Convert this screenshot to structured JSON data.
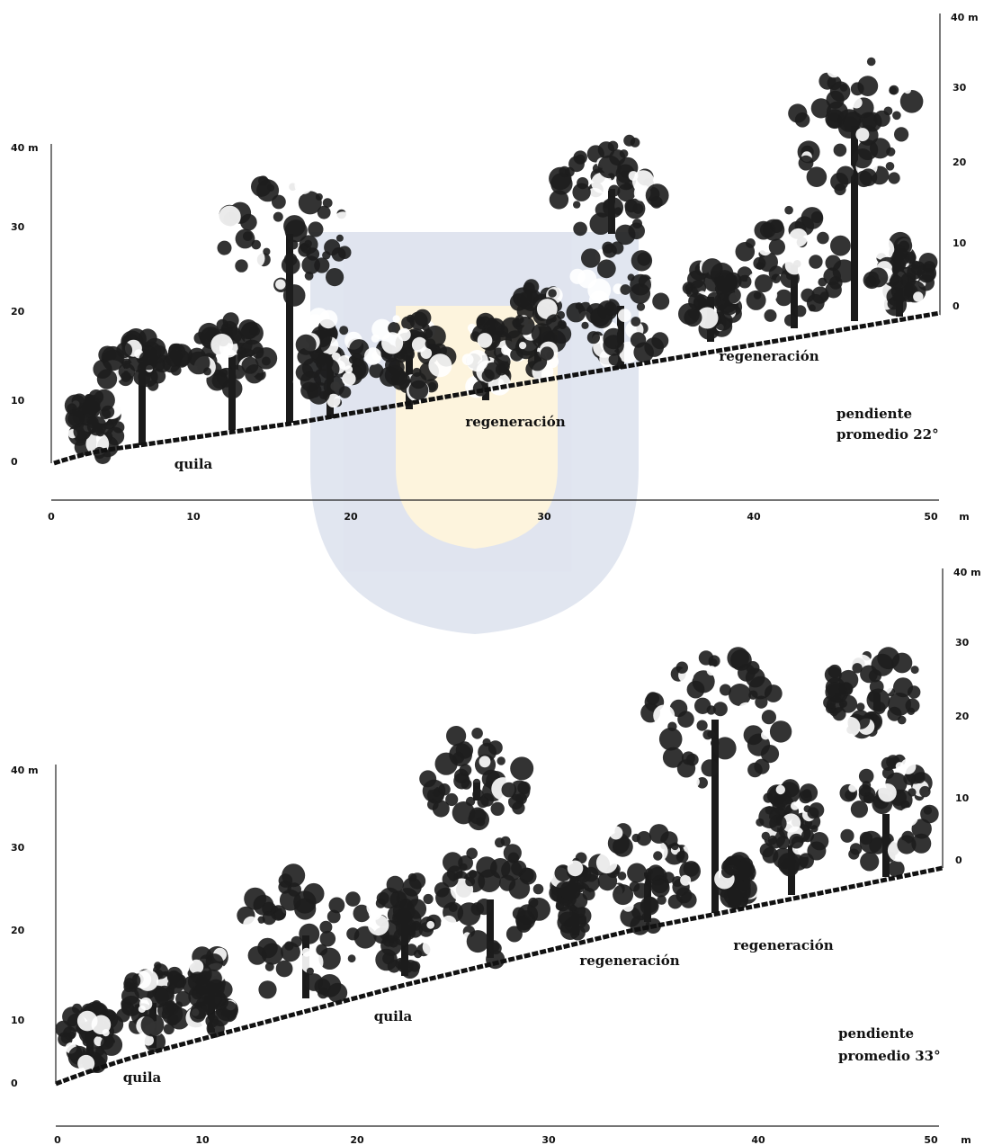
{
  "profiles": [
    {
      "left_axis": {
        "top_label": "40 m",
        "ticks": [
          "30",
          "20",
          "10",
          "0"
        ]
      },
      "right_axis": {
        "top_label": "40 m",
        "ticks": [
          "30",
          "20",
          "10",
          "0"
        ]
      },
      "x_axis": {
        "ticks": [
          "0",
          "10",
          "20",
          "30",
          "40",
          "50"
        ],
        "unit": "m"
      },
      "labels": [
        "quila",
        "regeneración",
        "regeneración"
      ],
      "slope": [
        "pendiente",
        "promedio 22°"
      ]
    },
    {
      "left_axis": {
        "top_label": "40 m",
        "ticks": [
          "30",
          "20",
          "10",
          "0"
        ]
      },
      "right_axis": {
        "top_label": "40 m",
        "ticks": [
          "30",
          "20",
          "10",
          "0"
        ]
      },
      "x_axis": {
        "ticks": [
          "0",
          "10",
          "20",
          "30",
          "40",
          "50"
        ],
        "unit": "m"
      },
      "labels": [
        "quila",
        "quila",
        "regeneración",
        "regeneración"
      ],
      "slope": [
        "pendiente",
        "promedio 33°"
      ]
    }
  ]
}
